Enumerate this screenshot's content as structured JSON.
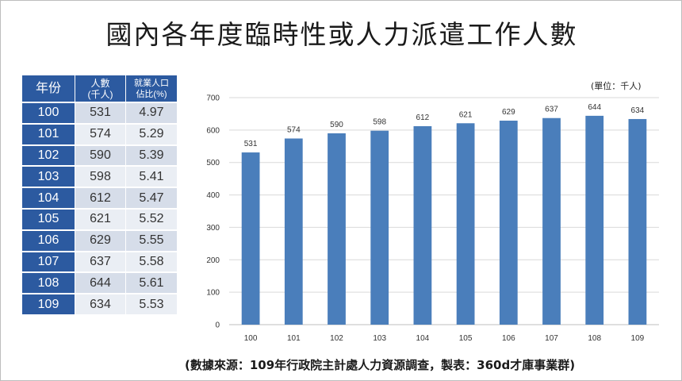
{
  "title": "國內各年度臨時性或人力派遣工作人數",
  "unit": "(單位：千人)",
  "source": "(數據來源：109年行政院主計處人力資源調查，製表：360d才庫事業群)",
  "table": {
    "headers": [
      {
        "line1": "年份",
        "line2": ""
      },
      {
        "line1": "人數",
        "line2": "(千人)"
      },
      {
        "line1": "就業人口",
        "line2": "佔比(%)"
      }
    ],
    "rows": [
      {
        "year": "100",
        "count": "531",
        "share": "4.97"
      },
      {
        "year": "101",
        "count": "574",
        "share": "5.29"
      },
      {
        "year": "102",
        "count": "590",
        "share": "5.39"
      },
      {
        "year": "103",
        "count": "598",
        "share": "5.41"
      },
      {
        "year": "104",
        "count": "612",
        "share": "5.47"
      },
      {
        "year": "105",
        "count": "621",
        "share": "5.52"
      },
      {
        "year": "106",
        "count": "629",
        "share": "5.55"
      },
      {
        "year": "107",
        "count": "637",
        "share": "5.58"
      },
      {
        "year": "108",
        "count": "644",
        "share": "5.61"
      },
      {
        "year": "109",
        "count": "634",
        "share": "5.53"
      }
    ]
  },
  "colors": {
    "bar": "#4a7ebb",
    "header": "#2c5aa0",
    "grid": "#d9d9d9"
  },
  "chart_data": {
    "type": "bar",
    "categories": [
      "100",
      "101",
      "102",
      "103",
      "104",
      "105",
      "106",
      "107",
      "108",
      "109"
    ],
    "values": [
      531,
      574,
      590,
      598,
      612,
      621,
      629,
      637,
      644,
      634
    ],
    "ylim": [
      0,
      700
    ],
    "yticks": [
      0,
      100,
      200,
      300,
      400,
      500,
      600,
      700
    ],
    "grid": true,
    "data_labels": true,
    "legend": "none"
  }
}
